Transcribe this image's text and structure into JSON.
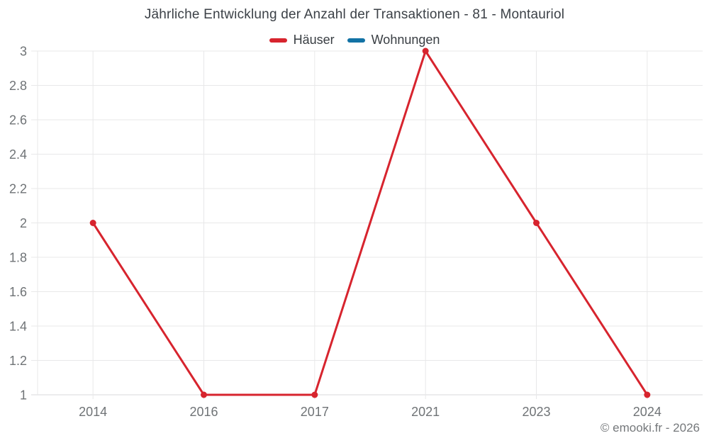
{
  "header": {
    "title": "Jährliche Entwicklung der Anzahl der Transaktionen - 81 - Montauriol"
  },
  "legend": {
    "items": [
      {
        "label": "Häuser",
        "color": "#d7242e",
        "icon": "legend-line-marker"
      },
      {
        "label": "Wohnungen",
        "color": "#1272a5",
        "icon": "legend-line-marker"
      }
    ]
  },
  "footer": {
    "copyright": "© emooki.fr - 2026"
  },
  "chart_data": {
    "type": "line",
    "title": "Jährliche Entwicklung der Anzahl der Transaktionen - 81 - Montauriol",
    "categories": [
      "2014",
      "2016",
      "2017",
      "2021",
      "2023",
      "2024"
    ],
    "series": [
      {
        "name": "Häuser",
        "color": "#d7242e",
        "values": [
          2,
          1,
          1,
          3,
          2,
          1
        ]
      },
      {
        "name": "Wohnungen",
        "color": "#1272a5",
        "values": []
      }
    ],
    "xlabel": "",
    "ylabel": "",
    "ylim": [
      1,
      3
    ],
    "ytick_labels": [
      "1",
      "1.2",
      "1.4",
      "1.6",
      "1.8",
      "2",
      "2.2",
      "2.4",
      "2.6",
      "2.8",
      "3"
    ],
    "grid": true,
    "legend_position": "top",
    "styles": {
      "grid_line": "#e8e8e9",
      "axis_line": "#d9dadb",
      "tick_label": "#6f7376",
      "line_width": 3,
      "marker_radius": 4.5,
      "background": "#ffffff"
    }
  }
}
